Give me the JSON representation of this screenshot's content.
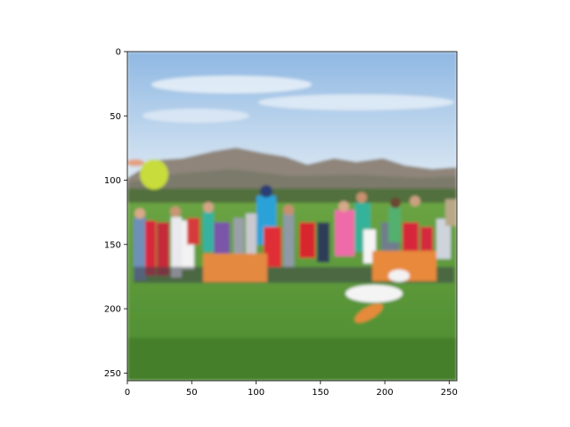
{
  "chart_data": {
    "type": "image",
    "title": "",
    "xlabel": "",
    "ylabel": "",
    "xlim": [
      0,
      256
    ],
    "ylim": [
      256,
      0
    ],
    "x_ticks": [
      0,
      50,
      100,
      150,
      200,
      250
    ],
    "y_ticks": [
      0,
      50,
      100,
      150,
      200,
      250
    ],
    "x_tick_labels": [
      "0",
      "50",
      "100",
      "150",
      "200",
      "250"
    ],
    "y_tick_labels": [
      "0",
      "50",
      "100",
      "150",
      "200",
      "250"
    ],
    "image_description_colors": {
      "sky_top": "#9fc3e6",
      "sky_bottom": "#d9e7f3",
      "mountains": "#8d8377",
      "trees": "#4f6b3a",
      "grass": "#5f9a3a",
      "grass_dark": "#3f7a2a",
      "frisbee": "#c7dc3a",
      "banner": "#e08a3a"
    }
  }
}
